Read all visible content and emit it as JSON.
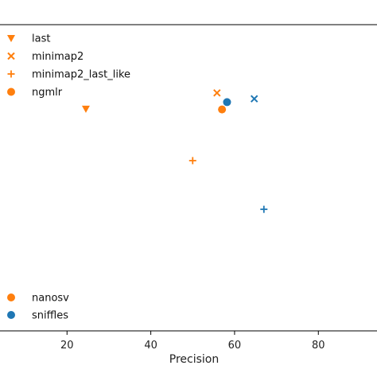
{
  "chart_data": {
    "type": "scatter",
    "xlabel": "Precision",
    "ylabel": "",
    "xlim": [
      4,
      94
    ],
    "ylim": [
      0,
      100
    ],
    "x_ticks": [
      20,
      40,
      60,
      80
    ],
    "grid": false,
    "legend_marker": {
      "placement": "top-left",
      "entries": [
        {
          "label": "last",
          "marker": "triangle-down"
        },
        {
          "label": "minimap2",
          "marker": "x"
        },
        {
          "label": "minimap2_last_like",
          "marker": "plus"
        },
        {
          "label": "ngmlr",
          "marker": "circle"
        }
      ]
    },
    "legend_caller": {
      "placement": "bottom-left",
      "entries": [
        {
          "label": "nanosv",
          "color": "#ff7f0e"
        },
        {
          "label": "sniffles",
          "color": "#1f77b4"
        }
      ]
    },
    "series": [
      {
        "aligner": "last",
        "caller": "nanosv",
        "marker": "triangle-down",
        "color": "#ff7f0e",
        "x": 24.5,
        "y": 72.5
      },
      {
        "aligner": "minimap2",
        "caller": "nanosv",
        "marker": "x",
        "color": "#ff7f0e",
        "x": 55.8,
        "y": 77.7
      },
      {
        "aligner": "minimap2",
        "caller": "sniffles",
        "marker": "x",
        "color": "#1f77b4",
        "x": 64.7,
        "y": 75.8
      },
      {
        "aligner": "ngmlr",
        "caller": "sniffles",
        "marker": "circle",
        "color": "#1f77b4",
        "x": 58.2,
        "y": 74.7
      },
      {
        "aligner": "ngmlr",
        "caller": "nanosv",
        "marker": "circle",
        "color": "#ff7f0e",
        "x": 57.0,
        "y": 72.3
      },
      {
        "aligner": "minimap2_last_like",
        "caller": "nanosv",
        "marker": "plus",
        "color": "#ff7f0e",
        "x": 50.0,
        "y": 55.6
      },
      {
        "aligner": "minimap2_last_like",
        "caller": "sniffles",
        "marker": "plus",
        "color": "#1f77b4",
        "x": 67.0,
        "y": 39.7
      }
    ]
  }
}
